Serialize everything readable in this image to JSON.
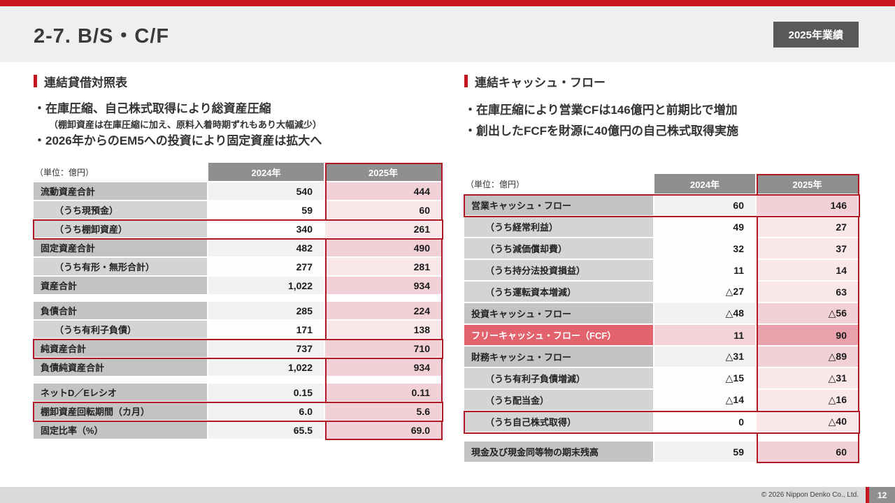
{
  "header": {
    "title": "2-7. B/S・C/F",
    "badge": "2025年業績"
  },
  "colors": {
    "accent_red": "#B01823",
    "top_bar_red": "#C7161D",
    "badge_gray": "#595959",
    "table_header_gray": "#8F8F8F",
    "fcf_row_red": "#E2636D",
    "highlight_pink": "#F1D1D7"
  },
  "left": {
    "section_title": "連結貸借対照表",
    "bullet1": "・在庫圧縮、自己株式取得により総資産圧縮",
    "bullet1_note": "（棚卸資産は在庫圧縮に加え、原料入着時期ずれもあり大幅減少）",
    "bullet2": "・2026年からのEM5への投資により固定資産は拡大へ",
    "table": {
      "unit_label": "（単位：億円）",
      "columns": [
        "2024年",
        "2025年"
      ],
      "rows": [
        {
          "label": "流動資産合計",
          "y2024": "540",
          "y2025": "444",
          "type": "main"
        },
        {
          "label": "（うち現預金）",
          "y2024": "59",
          "y2025": "60",
          "type": "sub"
        },
        {
          "label": "（うち棚卸資産）",
          "y2024": "340",
          "y2025": "261",
          "type": "sub",
          "highlight": true
        },
        {
          "label": "固定資産合計",
          "y2024": "482",
          "y2025": "490",
          "type": "main"
        },
        {
          "label": "（うち有形・無形合計）",
          "y2024": "277",
          "y2025": "281",
          "type": "sub"
        },
        {
          "label": "資産合計",
          "y2024": "1,022",
          "y2025": "934",
          "type": "main"
        },
        {
          "type": "spacer"
        },
        {
          "label": "負債合計",
          "y2024": "285",
          "y2025": "224",
          "type": "main"
        },
        {
          "label": "（うち有利子負債）",
          "y2024": "171",
          "y2025": "138",
          "type": "sub"
        },
        {
          "label": "純資産合計",
          "y2024": "737",
          "y2025": "710",
          "type": "main",
          "highlight": true
        },
        {
          "label": "負債純資産合計",
          "y2024": "1,022",
          "y2025": "934",
          "type": "main"
        },
        {
          "type": "spacer"
        },
        {
          "label": "ネットD／Eレシオ",
          "y2024": "0.15",
          "y2025": "0.11",
          "type": "main"
        },
        {
          "label": "棚卸資産回転期間（カ月）",
          "y2024": "6.0",
          "y2025": "5.6",
          "type": "main",
          "highlight": true
        },
        {
          "label": "固定比率（%）",
          "y2024": "65.5",
          "y2025": "69.0",
          "type": "main"
        }
      ]
    }
  },
  "right": {
    "section_title": "連結キャッシュ・フロー",
    "bullet1": "・在庫圧縮により営業CFは146億円と前期比で増加",
    "bullet2": "・創出したFCFを財源に40億円の自己株式取得実施",
    "table": {
      "unit_label": "（単位：億円）",
      "columns": [
        "2024年",
        "2025年"
      ],
      "rows": [
        {
          "label": "営業キャッシュ・フロー",
          "y2024": "60",
          "y2025": "146",
          "type": "main",
          "highlight": true
        },
        {
          "label": "（うち経常利益）",
          "y2024": "49",
          "y2025": "27",
          "type": "sub"
        },
        {
          "label": "（うち減価償却費）",
          "y2024": "32",
          "y2025": "37",
          "type": "sub"
        },
        {
          "label": "（うち持分法投資損益）",
          "y2024": "11",
          "y2025": "14",
          "type": "sub"
        },
        {
          "label": "（うち運転資本増減）",
          "y2024": "△27",
          "y2025": "63",
          "type": "sub"
        },
        {
          "label": "投資キャッシュ・フロー",
          "y2024": "△48",
          "y2025": "△56",
          "type": "main"
        },
        {
          "label": "フリーキャッシュ・フロー（FCF）",
          "y2024": "11",
          "y2025": "90",
          "type": "fcf"
        },
        {
          "label": "財務キャッシュ・フロー",
          "y2024": "△31",
          "y2025": "△89",
          "type": "main"
        },
        {
          "label": "（うち有利子負債増減）",
          "y2024": "△15",
          "y2025": "△31",
          "type": "sub"
        },
        {
          "label": "（うち配当金）",
          "y2024": "△14",
          "y2025": "△16",
          "type": "sub"
        },
        {
          "label": "（うち自己株式取得）",
          "y2024": "0",
          "y2025": "△40",
          "type": "sub",
          "highlight": true
        },
        {
          "type": "spacer"
        },
        {
          "label": "現金及び現金同等物の期末残高",
          "y2024": "59",
          "y2025": "60",
          "type": "main"
        }
      ]
    }
  },
  "footer": {
    "copyright": "© 2026 Nippon Denko Co., Ltd.",
    "page_number": "12"
  }
}
